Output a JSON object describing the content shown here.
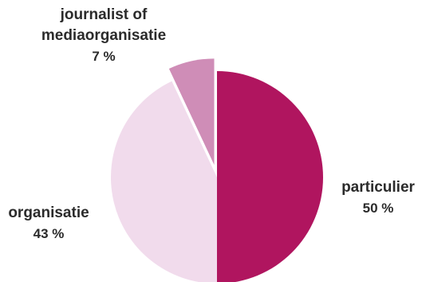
{
  "chart_data": {
    "type": "pie",
    "title": "",
    "slices": [
      {
        "label": "particulier",
        "percent_label": "50 %",
        "value": 50,
        "color": "#b0155f"
      },
      {
        "label": "organisatie",
        "percent_label": "43 %",
        "value": 43,
        "color": "#f1dbec"
      },
      {
        "label": "journalist of mediaorganisatie",
        "label_lines": [
          "journalist of",
          "mediaorganisatie"
        ],
        "percent_label": "7 %",
        "value": 7,
        "color": "#cf8db7",
        "exploded": true
      }
    ],
    "legend": "none",
    "labels_placement": "outside"
  }
}
